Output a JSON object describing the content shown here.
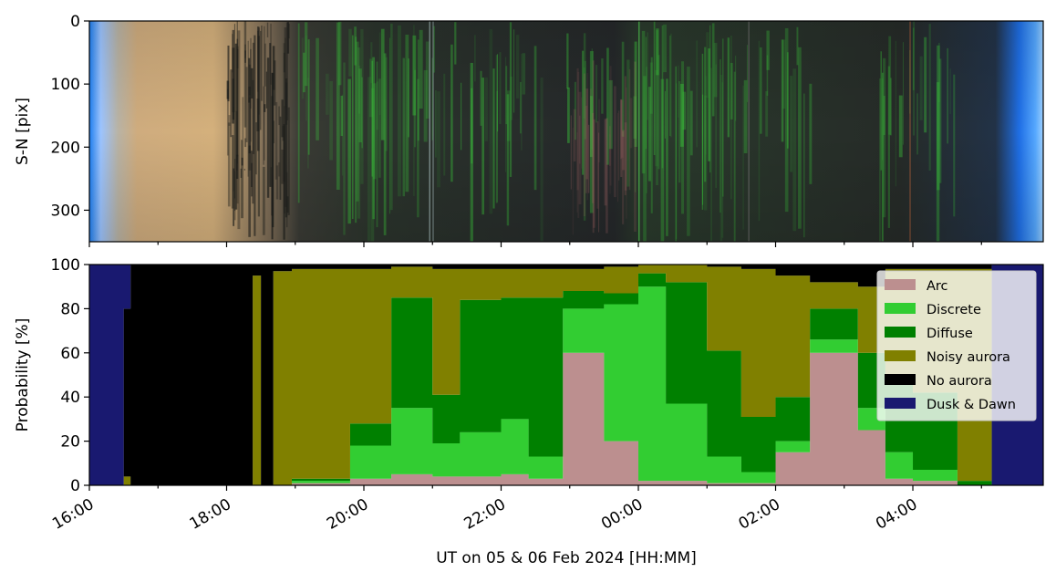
{
  "chart_data": [
    {
      "type": "heatmap",
      "description_role": "keogram",
      "ylabel": "S-N [pix]",
      "yticks": [
        "0",
        "100",
        "200",
        "300"
      ],
      "ylim": [
        350,
        0
      ],
      "x_range_ut_hours": [
        16.0,
        29.9
      ],
      "colors": {
        "twilight_edge": "#1f7ff0",
        "twilight_light": "#a8c8ff",
        "dusk_tan": "#d6b17e",
        "night_dark": "#2a2d2f",
        "aurora_green": "#3ccc3c"
      }
    },
    {
      "type": "area",
      "stacked": true,
      "ylabel": "Probability [%]",
      "xlabel": "UT on 05 & 06 Feb 2024 [HH:MM]",
      "ylim": [
        0,
        100
      ],
      "yticks": [
        "0",
        "20",
        "40",
        "60",
        "80",
        "100"
      ],
      "x_range_ut_hours": [
        16.0,
        29.9
      ],
      "xticks": [
        {
          "t": 16,
          "label": "16:00"
        },
        {
          "t": 18,
          "label": "18:00"
        },
        {
          "t": 20,
          "label": "20:00"
        },
        {
          "t": 22,
          "label": "22:00"
        },
        {
          "t": 24,
          "label": "00:00"
        },
        {
          "t": 26,
          "label": "02:00"
        },
        {
          "t": 28,
          "label": "04:00"
        }
      ],
      "legend_location": "upper right",
      "series": [
        {
          "name": "Arc",
          "color": "#bc8f8f"
        },
        {
          "name": "Discrete",
          "color": "#32cd32"
        },
        {
          "name": "Diffuse",
          "color": "#008000"
        },
        {
          "name": "Noisy aurora",
          "color": "#808000"
        },
        {
          "name": "No aurora",
          "color": "#000000"
        },
        {
          "name": "Dusk & Dawn",
          "color": "#191970"
        }
      ],
      "segments": [
        {
          "start": 16.0,
          "end": 16.5,
          "p": [
            0,
            0,
            0,
            0,
            0,
            100
          ]
        },
        {
          "start": 16.5,
          "end": 16.6,
          "p": [
            0,
            0,
            0,
            4,
            76,
            20
          ]
        },
        {
          "start": 16.6,
          "end": 18.38,
          "p": [
            0,
            0,
            0,
            0,
            100,
            0
          ]
        },
        {
          "start": 18.38,
          "end": 18.5,
          "p": [
            0,
            0,
            0,
            95,
            5,
            0
          ]
        },
        {
          "start": 18.5,
          "end": 18.68,
          "p": [
            0,
            0,
            0,
            0,
            100,
            0
          ]
        },
        {
          "start": 18.68,
          "end": 18.95,
          "p": [
            0,
            0,
            0,
            97,
            3,
            0
          ]
        },
        {
          "start": 18.95,
          "end": 19.8,
          "p": [
            1,
            1,
            1,
            95,
            2,
            0
          ]
        },
        {
          "start": 19.8,
          "end": 20.4,
          "p": [
            3,
            15,
            10,
            70,
            2,
            0
          ]
        },
        {
          "start": 20.4,
          "end": 21.0,
          "p": [
            5,
            30,
            50,
            14,
            1,
            0
          ]
        },
        {
          "start": 21.0,
          "end": 21.4,
          "p": [
            4,
            15,
            22,
            57,
            2,
            0
          ]
        },
        {
          "start": 21.4,
          "end": 22.0,
          "p": [
            4,
            20,
            60,
            14,
            2,
            0
          ]
        },
        {
          "start": 22.0,
          "end": 22.4,
          "p": [
            5,
            25,
            55,
            13,
            2,
            0
          ]
        },
        {
          "start": 22.4,
          "end": 22.9,
          "p": [
            3,
            10,
            72,
            13,
            2,
            0
          ]
        },
        {
          "start": 22.9,
          "end": 23.5,
          "p": [
            60,
            20,
            8,
            10,
            2,
            0
          ]
        },
        {
          "start": 23.5,
          "end": 24.0,
          "p": [
            20,
            62,
            5,
            12,
            1,
            0
          ]
        },
        {
          "start": 24.0,
          "end": 24.4,
          "p": [
            2,
            88,
            6,
            4,
            0,
            0
          ]
        },
        {
          "start": 24.4,
          "end": 25.0,
          "p": [
            2,
            35,
            55,
            8,
            0,
            0
          ]
        },
        {
          "start": 25.0,
          "end": 25.5,
          "p": [
            1,
            12,
            48,
            38,
            1,
            0
          ]
        },
        {
          "start": 25.5,
          "end": 26.0,
          "p": [
            1,
            5,
            25,
            67,
            2,
            0
          ]
        },
        {
          "start": 26.0,
          "end": 26.5,
          "p": [
            15,
            5,
            20,
            55,
            5,
            0
          ]
        },
        {
          "start": 26.5,
          "end": 27.2,
          "p": [
            60,
            6,
            14,
            12,
            8,
            0
          ]
        },
        {
          "start": 27.2,
          "end": 27.6,
          "p": [
            25,
            10,
            25,
            30,
            10,
            0
          ]
        },
        {
          "start": 27.6,
          "end": 28.0,
          "p": [
            3,
            12,
            35,
            48,
            2,
            0
          ]
        },
        {
          "start": 28.0,
          "end": 28.65,
          "p": [
            2,
            5,
            35,
            56,
            2,
            0
          ]
        },
        {
          "start": 28.65,
          "end": 29.15,
          "p": [
            0,
            0,
            2,
            96,
            2,
            0
          ]
        },
        {
          "start": 29.15,
          "end": 29.9,
          "p": [
            0,
            0,
            0,
            0,
            0,
            100
          ]
        }
      ]
    }
  ]
}
